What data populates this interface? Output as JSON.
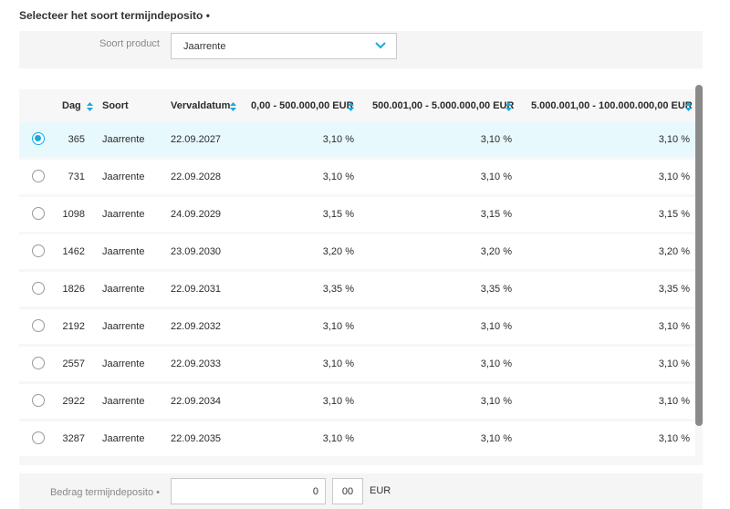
{
  "section_title": "Selecteer het soort termijndeposito •",
  "product": {
    "label": "Soort product",
    "value": "Jaarrente"
  },
  "table": {
    "headers": {
      "dag": "Dag",
      "soort": "Soort",
      "vervaldatum": "Vervaldatum",
      "r1": "0,00 - 500.000,00 EUR",
      "r2": "500.001,00 - 5.000.000,00 EUR",
      "r3": "5.000.001,00 - 100.000.000,00 EUR"
    },
    "rows": [
      {
        "dag": "365",
        "soort": "Jaarrente",
        "datum": "22.09.2027",
        "r1": "3,10 %",
        "r2": "3,10 %",
        "r3": "3,10 %",
        "selected": true
      },
      {
        "dag": "731",
        "soort": "Jaarrente",
        "datum": "22.09.2028",
        "r1": "3,10 %",
        "r2": "3,10 %",
        "r3": "3,10 %",
        "selected": false
      },
      {
        "dag": "1098",
        "soort": "Jaarrente",
        "datum": "24.09.2029",
        "r1": "3,15 %",
        "r2": "3,15 %",
        "r3": "3,15 %",
        "selected": false
      },
      {
        "dag": "1462",
        "soort": "Jaarrente",
        "datum": "23.09.2030",
        "r1": "3,20 %",
        "r2": "3,20 %",
        "r3": "3,20 %",
        "selected": false
      },
      {
        "dag": "1826",
        "soort": "Jaarrente",
        "datum": "22.09.2031",
        "r1": "3,35 %",
        "r2": "3,35 %",
        "r3": "3,35 %",
        "selected": false
      },
      {
        "dag": "2192",
        "soort": "Jaarrente",
        "datum": "22.09.2032",
        "r1": "3,10 %",
        "r2": "3,10 %",
        "r3": "3,10 %",
        "selected": false
      },
      {
        "dag": "2557",
        "soort": "Jaarrente",
        "datum": "22.09.2033",
        "r1": "3,10 %",
        "r2": "3,10 %",
        "r3": "3,10 %",
        "selected": false
      },
      {
        "dag": "2922",
        "soort": "Jaarrente",
        "datum": "22.09.2034",
        "r1": "3,10 %",
        "r2": "3,10 %",
        "r3": "3,10 %",
        "selected": false
      },
      {
        "dag": "3287",
        "soort": "Jaarrente",
        "datum": "22.09.2035",
        "r1": "3,10 %",
        "r2": "3,10 %",
        "r3": "3,10 %",
        "selected": false
      }
    ]
  },
  "amount": {
    "label": "Bedrag termijndeposito •",
    "value": "0",
    "cents": "00",
    "currency": "EUR"
  },
  "colors": {
    "accent": "#19a9e1",
    "selected_row": "#e8f9fd",
    "panel": "#f5f5f5"
  }
}
